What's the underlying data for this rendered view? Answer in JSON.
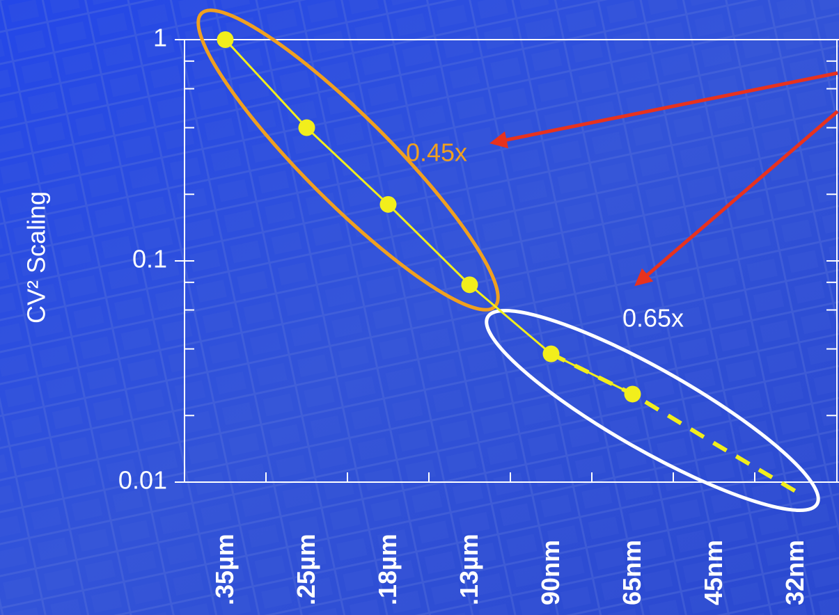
{
  "chart_data": {
    "type": "line",
    "y_label": "CV² Scaling",
    "categories": [
      ".35µm",
      ".25µm",
      ".18µm",
      ".13µm",
      "90nm",
      "65nm",
      "45nm",
      "32nm"
    ],
    "series": [
      {
        "color": "#f2ee1c",
        "style": "solid",
        "marker": true,
        "values": [
          1,
          0.4,
          0.18,
          0.078,
          0.038,
          0.025,
          null,
          null
        ]
      },
      {
        "color": "#f2ee1c",
        "style": "dashed",
        "marker": false,
        "values": [
          null,
          null,
          null,
          null,
          0.038,
          0.025,
          0.015,
          0.0091
        ]
      }
    ],
    "log_y": true,
    "ylim": [
      0.01,
      1
    ],
    "yticks": [
      {
        "value": 0.01,
        "label": "0.01"
      },
      0.1,
      1
    ],
    "minor_yticks": [
      0.8,
      0.6,
      0.4,
      0.2,
      0.08,
      0.06,
      0.04,
      0.02
    ],
    "annotations": [
      {
        "text": "0.45x",
        "color": "#f0a020"
      },
      {
        "text": "0.65x",
        "color": "#ffffff"
      }
    ]
  }
}
